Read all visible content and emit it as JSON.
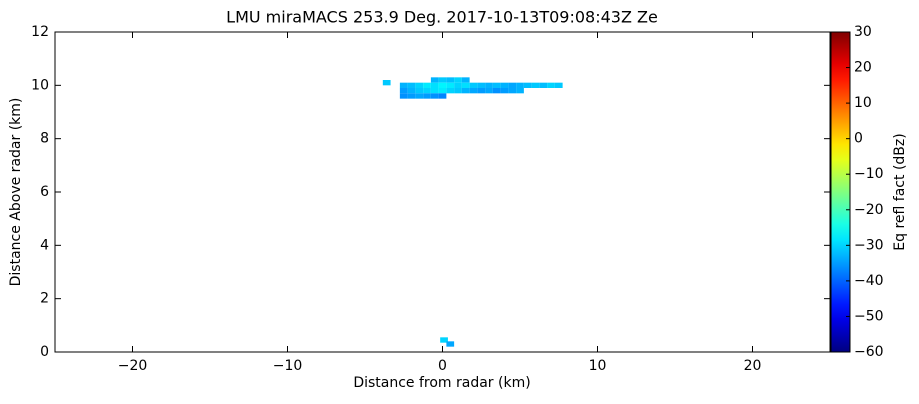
{
  "chart_data": {
    "type": "rhi",
    "title": "LMU miraMACS 253.9 Deg. 2017-10-13T09:08:43Z  Ze",
    "x_label": "Distance from radar (km)",
    "y_label": "Distance Above radar  (km)",
    "colorbar_label": "Eq refl fact (dBz)",
    "colormap": "jet",
    "xlim": [
      -25,
      25
    ],
    "ylim": [
      0,
      12
    ],
    "xticks": [
      {
        "value": -20,
        "label": "−20"
      },
      {
        "value": -10,
        "label": "−10"
      },
      0,
      10,
      20
    ],
    "yticks": [
      0,
      2,
      4,
      6,
      8,
      10,
      12
    ],
    "clim": [
      -60,
      30
    ],
    "cticks": [
      {
        "value": -60,
        "label": "−60"
      },
      {
        "value": -50,
        "label": "−50"
      },
      {
        "value": -40,
        "label": "−40"
      },
      {
        "value": -30,
        "label": "−30"
      },
      {
        "value": -20,
        "label": "−20"
      },
      {
        "value": -10,
        "label": "−10"
      },
      0,
      10,
      20,
      30
    ],
    "cells": {
      "x": [
        -3.6,
        -0.5,
        0,
        0.5,
        1,
        1.5,
        -2.5,
        -2,
        -1.5,
        -1,
        -0.5,
        0,
        0.5,
        1,
        1.5,
        2,
        2.5,
        3,
        3.5,
        4,
        4.5,
        5,
        5.5,
        6,
        6.5,
        7,
        7.5,
        -2.5,
        -2,
        -1.5,
        -1,
        -0.5,
        0,
        0.5,
        1,
        1.5,
        2,
        2.5,
        3,
        3.5,
        4,
        4.5,
        5,
        -2.5,
        -2,
        -1.5,
        -1,
        -0.5,
        0,
        0.1,
        0.5
      ],
      "y": [
        10.1,
        10.2,
        10.2,
        10.2,
        10.2,
        10.2,
        10,
        10,
        10,
        10,
        10,
        10,
        10,
        10,
        10,
        10,
        10,
        10,
        10,
        10,
        10,
        10,
        10,
        10,
        10,
        10,
        10,
        9.8,
        9.8,
        9.8,
        9.8,
        9.8,
        9.8,
        9.8,
        9.8,
        9.8,
        9.8,
        9.8,
        9.8,
        9.8,
        9.8,
        9.8,
        9.8,
        9.6,
        9.6,
        9.6,
        9.6,
        9.6,
        9.6,
        0.45,
        0.3
      ],
      "values": [
        -31,
        -33,
        -31,
        -32,
        -30,
        -33,
        -33,
        -32,
        -30,
        -28,
        -29,
        -27,
        -28,
        -30,
        -29,
        -31,
        -32,
        -33,
        -32,
        -33,
        -34,
        -33,
        -32,
        -31,
        -32,
        -30,
        -31,
        -35,
        -33,
        -31,
        -30,
        -29,
        -28,
        -30,
        -31,
        -33,
        -34,
        -35,
        -34,
        -36,
        -35,
        -34,
        -33,
        -36,
        -35,
        -34,
        -35,
        -36,
        -37,
        -30,
        -34
      ]
    }
  }
}
